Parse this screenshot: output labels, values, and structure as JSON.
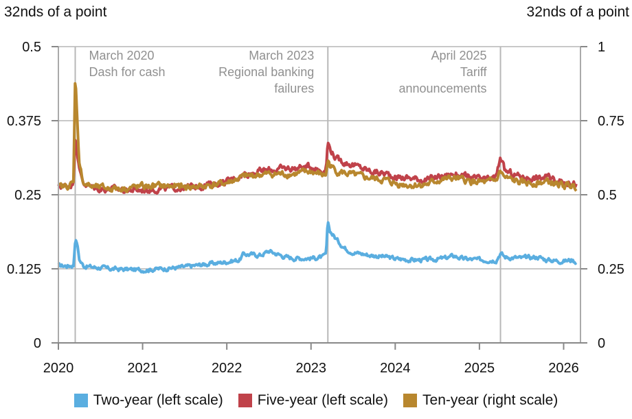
{
  "chart_data": {
    "type": "line",
    "left_axis_label": "32nds of a point",
    "right_axis_label": "32nds of a point",
    "y_left": {
      "min": 0,
      "max": 0.5,
      "ticks": [
        "0",
        "0.125",
        "0.25",
        "0.375",
        "0.5"
      ]
    },
    "y_right": {
      "min": 0,
      "max": 1,
      "ticks": [
        "0",
        "0.25",
        "0.5",
        "0.75",
        "1"
      ]
    },
    "x": {
      "min": 2020.0,
      "max": 2026.2,
      "ticks": [
        "2020",
        "2021",
        "2022",
        "2023",
        "2024",
        "2025",
        "2026"
      ]
    },
    "grid": "horizontal",
    "legend_position": "bottom",
    "annotations": [
      {
        "x": 2020.2,
        "lines": [
          "March 2020",
          "Dash for cash"
        ],
        "align": "left"
      },
      {
        "x": 2023.2,
        "lines": [
          "March 2023",
          "Regional banking",
          "failures"
        ],
        "align": "right"
      },
      {
        "x": 2025.25,
        "lines": [
          "April 2025",
          "Tariff",
          "announcements"
        ],
        "align": "right"
      }
    ],
    "series": [
      {
        "name": "Two-year (left scale)",
        "axis": "left",
        "color": "#5aaee0",
        "points": [
          [
            2020.0,
            0.13
          ],
          [
            2020.1,
            0.13
          ],
          [
            2020.18,
            0.131
          ],
          [
            2020.2,
            0.175
          ],
          [
            2020.22,
            0.17
          ],
          [
            2020.25,
            0.14
          ],
          [
            2020.3,
            0.13
          ],
          [
            2020.4,
            0.128
          ],
          [
            2020.5,
            0.127
          ],
          [
            2020.6,
            0.125
          ],
          [
            2020.8,
            0.124
          ],
          [
            2021.0,
            0.123
          ],
          [
            2021.2,
            0.125
          ],
          [
            2021.5,
            0.128
          ],
          [
            2021.7,
            0.132
          ],
          [
            2021.9,
            0.135
          ],
          [
            2022.0,
            0.137
          ],
          [
            2022.15,
            0.14
          ],
          [
            2022.2,
            0.15
          ],
          [
            2022.4,
            0.148
          ],
          [
            2022.5,
            0.155
          ],
          [
            2022.6,
            0.15
          ],
          [
            2022.7,
            0.145
          ],
          [
            2022.8,
            0.143
          ],
          [
            2023.0,
            0.143
          ],
          [
            2023.15,
            0.145
          ],
          [
            2023.18,
            0.15
          ],
          [
            2023.2,
            0.205
          ],
          [
            2023.22,
            0.19
          ],
          [
            2023.3,
            0.175
          ],
          [
            2023.4,
            0.16
          ],
          [
            2023.5,
            0.153
          ],
          [
            2023.7,
            0.148
          ],
          [
            2023.9,
            0.145
          ],
          [
            2024.0,
            0.142
          ],
          [
            2024.2,
            0.14
          ],
          [
            2024.4,
            0.14
          ],
          [
            2024.6,
            0.143
          ],
          [
            2024.7,
            0.147
          ],
          [
            2024.8,
            0.142
          ],
          [
            2025.0,
            0.14
          ],
          [
            2025.2,
            0.14
          ],
          [
            2025.25,
            0.152
          ],
          [
            2025.3,
            0.145
          ],
          [
            2025.5,
            0.143
          ],
          [
            2025.7,
            0.145
          ],
          [
            2025.8,
            0.14
          ],
          [
            2026.0,
            0.138
          ],
          [
            2026.1,
            0.14
          ],
          [
            2026.15,
            0.137
          ]
        ]
      },
      {
        "name": "Five-year (left scale)",
        "axis": "left",
        "color": "#c0424a",
        "points": [
          [
            2020.0,
            0.264
          ],
          [
            2020.1,
            0.265
          ],
          [
            2020.18,
            0.27
          ],
          [
            2020.2,
            0.355
          ],
          [
            2020.22,
            0.33
          ],
          [
            2020.25,
            0.29
          ],
          [
            2020.3,
            0.27
          ],
          [
            2020.4,
            0.262
          ],
          [
            2020.5,
            0.26
          ],
          [
            2020.6,
            0.26
          ],
          [
            2020.8,
            0.258
          ],
          [
            2021.0,
            0.258
          ],
          [
            2021.2,
            0.26
          ],
          [
            2021.5,
            0.262
          ],
          [
            2021.7,
            0.265
          ],
          [
            2021.9,
            0.27
          ],
          [
            2022.0,
            0.272
          ],
          [
            2022.2,
            0.285
          ],
          [
            2022.4,
            0.29
          ],
          [
            2022.6,
            0.293
          ],
          [
            2022.8,
            0.295
          ],
          [
            2023.0,
            0.298
          ],
          [
            2023.15,
            0.29
          ],
          [
            2023.18,
            0.295
          ],
          [
            2023.2,
            0.34
          ],
          [
            2023.22,
            0.33
          ],
          [
            2023.3,
            0.31
          ],
          [
            2023.5,
            0.3
          ],
          [
            2023.7,
            0.29
          ],
          [
            2023.9,
            0.285
          ],
          [
            2024.0,
            0.28
          ],
          [
            2024.2,
            0.278
          ],
          [
            2024.4,
            0.275
          ],
          [
            2024.5,
            0.28
          ],
          [
            2024.7,
            0.285
          ],
          [
            2024.9,
            0.278
          ],
          [
            2025.1,
            0.275
          ],
          [
            2025.2,
            0.28
          ],
          [
            2025.25,
            0.315
          ],
          [
            2025.3,
            0.29
          ],
          [
            2025.5,
            0.28
          ],
          [
            2025.7,
            0.278
          ],
          [
            2025.8,
            0.28
          ],
          [
            2026.0,
            0.272
          ],
          [
            2026.1,
            0.27
          ],
          [
            2026.15,
            0.268
          ]
        ]
      },
      {
        "name": "Ten-year (right scale)",
        "axis": "right",
        "color": "#b8872e",
        "points": [
          [
            2020.0,
            0.526
          ],
          [
            2020.1,
            0.528
          ],
          [
            2020.18,
            0.54
          ],
          [
            2020.2,
            0.91
          ],
          [
            2020.22,
            0.78
          ],
          [
            2020.25,
            0.6
          ],
          [
            2020.3,
            0.54
          ],
          [
            2020.4,
            0.526
          ],
          [
            2020.5,
            0.524
          ],
          [
            2020.6,
            0.522
          ],
          [
            2020.8,
            0.522
          ],
          [
            2021.0,
            0.528
          ],
          [
            2021.2,
            0.53
          ],
          [
            2021.5,
            0.526
          ],
          [
            2021.7,
            0.528
          ],
          [
            2021.9,
            0.536
          ],
          [
            2022.0,
            0.54
          ],
          [
            2022.2,
            0.56
          ],
          [
            2022.4,
            0.568
          ],
          [
            2022.6,
            0.57
          ],
          [
            2022.8,
            0.57
          ],
          [
            2023.0,
            0.578
          ],
          [
            2023.15,
            0.566
          ],
          [
            2023.18,
            0.57
          ],
          [
            2023.2,
            0.62
          ],
          [
            2023.22,
            0.6
          ],
          [
            2023.3,
            0.58
          ],
          [
            2023.5,
            0.566
          ],
          [
            2023.7,
            0.556
          ],
          [
            2023.9,
            0.548
          ],
          [
            2024.0,
            0.538
          ],
          [
            2024.2,
            0.532
          ],
          [
            2024.4,
            0.536
          ],
          [
            2024.5,
            0.548
          ],
          [
            2024.7,
            0.556
          ],
          [
            2024.9,
            0.544
          ],
          [
            2025.1,
            0.54
          ],
          [
            2025.2,
            0.55
          ],
          [
            2025.25,
            0.58
          ],
          [
            2025.3,
            0.556
          ],
          [
            2025.5,
            0.54
          ],
          [
            2025.7,
            0.54
          ],
          [
            2025.8,
            0.544
          ],
          [
            2026.0,
            0.53
          ],
          [
            2026.1,
            0.532
          ],
          [
            2026.15,
            0.526
          ]
        ]
      }
    ]
  }
}
